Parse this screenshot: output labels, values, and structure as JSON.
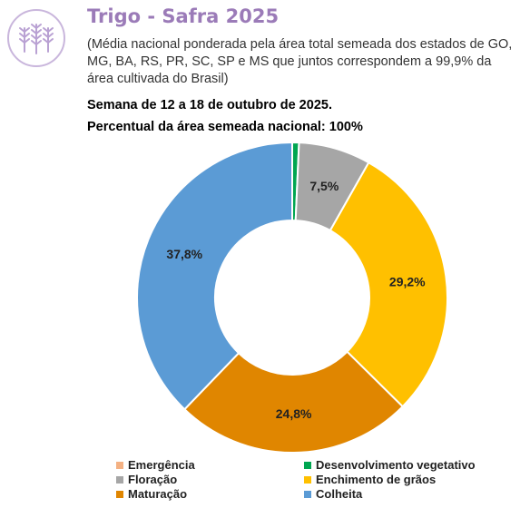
{
  "header": {
    "title": "Trigo - Safra 2025",
    "subtitle": "(Média nacional ponderada pela área total semeada dos estados de GO, MG, BA, RS, PR, SC, SP e MS que juntos correspondem a 99,9% da área cultivada do Brasil)",
    "week": "Semana de 12 a 18 de outubro de 2025.",
    "percent": "Percentual da área semeada nacional: 100%",
    "logo_icon": "wheat-icon"
  },
  "chart_data": {
    "type": "pie",
    "donut": true,
    "categories": [
      "Emergência",
      "Desenvolvimento vegetativo",
      "Floração",
      "Enchimento de grãos",
      "Maturação",
      "Colheita"
    ],
    "values": [
      0,
      0.7,
      7.5,
      29.2,
      24.8,
      37.8
    ],
    "labels": [
      "",
      "",
      "7,5%",
      "29,2%",
      "24,8%",
      "37,8%"
    ],
    "colors": [
      "#f4b183",
      "#00a651",
      "#a6a6a6",
      "#ffc000",
      "#e08600",
      "#5b9bd5"
    ],
    "legend_position": "bottom"
  }
}
